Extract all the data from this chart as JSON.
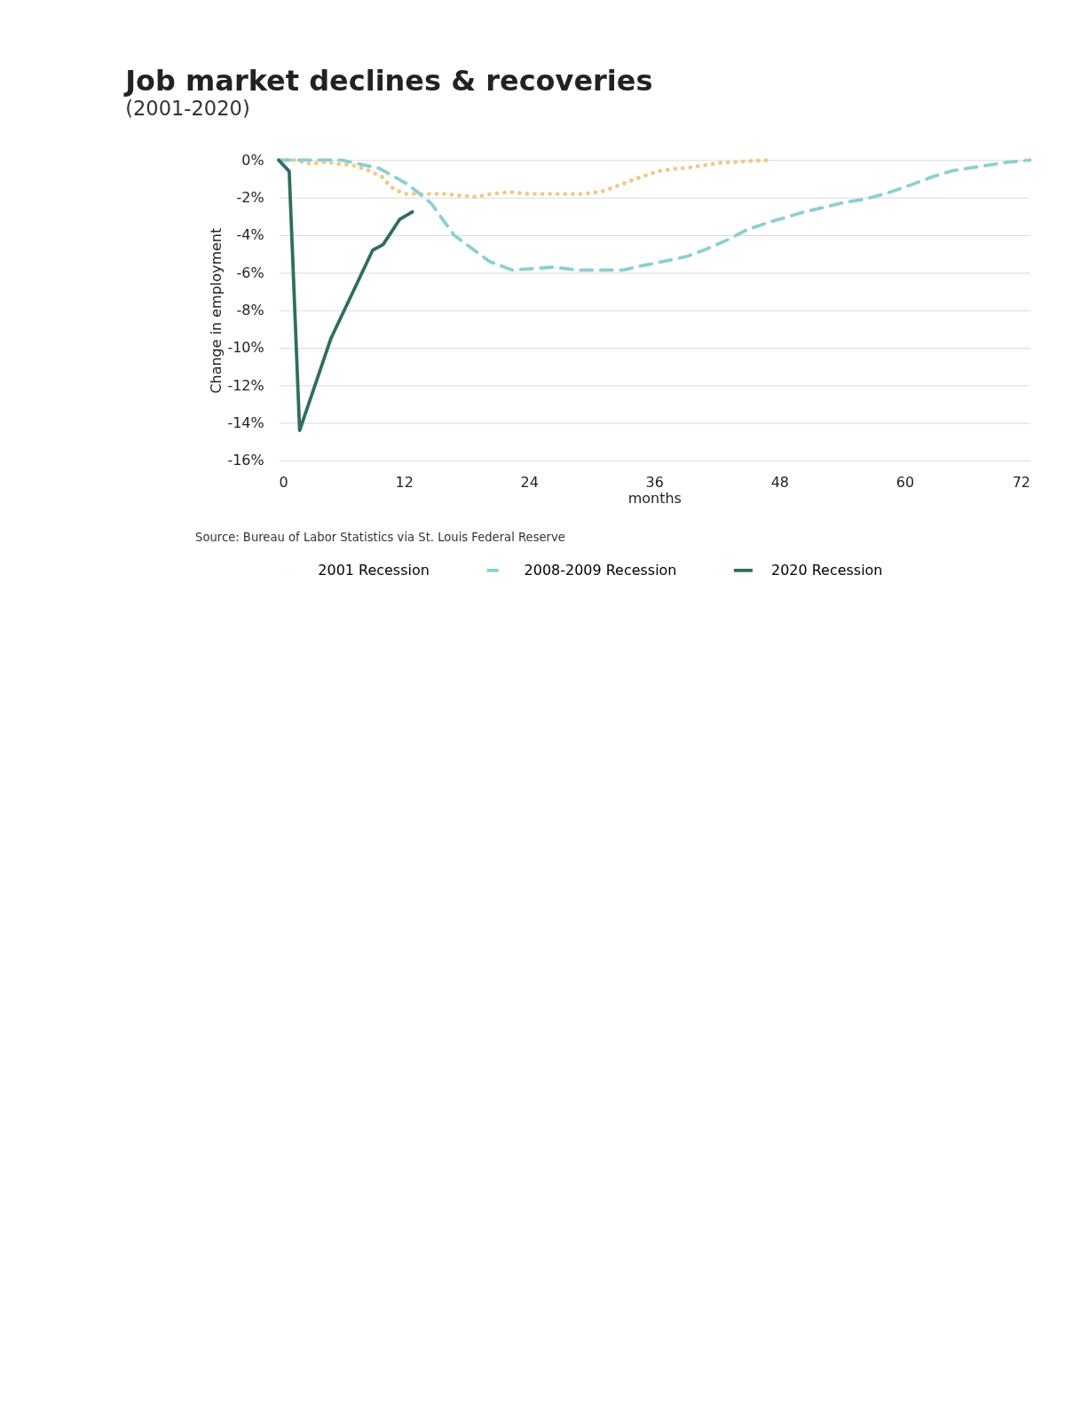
{
  "chart_data": {
    "type": "line",
    "title": "Job market declines & recoveries",
    "subtitle": "(2001-2020)",
    "xlabel": "months",
    "ylabel": "Change in employment",
    "xlim": [
      0,
      72
    ],
    "xticks": [
      0,
      12,
      24,
      36,
      48,
      60,
      72
    ],
    "ylim": [
      -16,
      0
    ],
    "yticks": [
      {
        "value": 0,
        "label": "0%"
      },
      {
        "value": -2,
        "label": "-2%"
      },
      {
        "value": -4,
        "label": "-4%"
      },
      {
        "value": -6,
        "label": "-6%"
      },
      {
        "value": -8,
        "label": "-8%"
      },
      {
        "value": -10,
        "label": "-10%"
      },
      {
        "value": -12,
        "label": "-12%"
      },
      {
        "value": -14,
        "label": "-14%"
      },
      {
        "value": -16,
        "label": "-16%"
      }
    ],
    "grid": "y",
    "legend": "bottom",
    "marker": "none",
    "series": [
      {
        "name": "2001 Recession",
        "color": "#f0c987",
        "line_style": "dotted",
        "x": [
          0,
          1.5,
          3.0,
          4.4,
          5.8,
          7.3,
          8.6,
          9.9,
          10.8,
          12.0,
          13.4,
          14.7,
          16.0,
          17.5,
          19.0,
          20.4,
          22.2,
          23.9,
          25.2,
          26.5,
          27.7,
          29.2,
          30.8,
          32.1,
          33.5,
          34.9,
          36.4,
          37.9,
          39.3,
          40.8,
          42.2,
          43.8,
          45.4,
          46.9
        ],
        "values": [
          0,
          0,
          -0.2,
          -0.1,
          -0.2,
          -0.3,
          -0.55,
          -0.9,
          -1.45,
          -1.8,
          -1.8,
          -1.8,
          -1.8,
          -1.9,
          -1.95,
          -1.8,
          -1.7,
          -1.8,
          -1.8,
          -1.8,
          -1.8,
          -1.8,
          -1.7,
          -1.45,
          -1.15,
          -0.86,
          -0.59,
          -0.47,
          -0.4,
          -0.27,
          -0.16,
          -0.1,
          -0.04,
          0
        ]
      },
      {
        "name": "2008-2009 Recession",
        "color": "#8ecfcf",
        "line_style": "dashed",
        "x": [
          0,
          3,
          6,
          9.6,
          12.4,
          14.6,
          16.8,
          20.2,
          22.4,
          26.3,
          28.6,
          33,
          34.6,
          37.3,
          39.1,
          40.9,
          43,
          44.8,
          46.7,
          50.3,
          54.2,
          56,
          58.1,
          60.7,
          62.8,
          64.6,
          67.2,
          69.8,
          72
        ],
        "values": [
          0,
          0,
          0,
          -0.43,
          -1.3,
          -2.3,
          -4.0,
          -5.4,
          -5.86,
          -5.7,
          -5.86,
          -5.86,
          -5.65,
          -5.35,
          -5.13,
          -4.76,
          -4.25,
          -3.73,
          -3.36,
          -2.77,
          -2.26,
          -2.1,
          -1.8,
          -1.3,
          -0.86,
          -0.56,
          -0.34,
          -0.12,
          0
        ]
      },
      {
        "name": "2020 Recession",
        "color": "#2e6e5e",
        "line_style": "solid",
        "x": [
          0,
          1,
          2,
          5,
          9,
          10,
          11.6,
          12.8
        ],
        "values": [
          0,
          -0.6,
          -14.4,
          -9.5,
          -4.8,
          -4.5,
          -3.15,
          -2.76
        ]
      }
    ],
    "annotations": [
      "Source: Bureau of Labor Statistics via St. Louis Federal Reserve"
    ]
  }
}
